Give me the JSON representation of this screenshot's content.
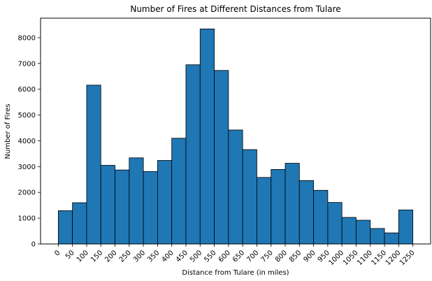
{
  "chart_data": {
    "type": "bar",
    "title": "Number of Fires at Different Distances from Tulare",
    "xlabel": "Distance from Tulare (in miles)",
    "ylabel": "Number of Fires",
    "bin_width": 50,
    "bin_starts": [
      0,
      50,
      100,
      150,
      200,
      250,
      300,
      350,
      400,
      450,
      500,
      550,
      600,
      650,
      700,
      750,
      800,
      850,
      900,
      950,
      1000,
      1050,
      1100,
      1150,
      1200
    ],
    "values": [
      1290,
      1600,
      6160,
      3050,
      2870,
      3340,
      2810,
      3240,
      4100,
      6950,
      8340,
      6730,
      4420,
      3660,
      2580,
      2890,
      3130,
      2460,
      2080,
      1610,
      1030,
      920,
      600,
      430,
      1320
    ],
    "x_ticks": [
      0,
      50,
      100,
      150,
      200,
      250,
      300,
      350,
      400,
      450,
      500,
      550,
      600,
      650,
      700,
      750,
      800,
      850,
      900,
      950,
      1000,
      1050,
      1100,
      1150,
      1200,
      1250
    ],
    "x_tick_labels": [
      "0",
      "50",
      "100",
      "150",
      "200",
      "250",
      "300",
      "350",
      "400",
      "450",
      "500",
      "550",
      "600",
      "650",
      "700",
      "750",
      "800",
      "850",
      "900",
      "950",
      "1000",
      "1050",
      "1100",
      "1150",
      "1200",
      "1250"
    ],
    "y_ticks": [
      0,
      1000,
      2000,
      3000,
      4000,
      5000,
      6000,
      7000,
      8000
    ],
    "y_tick_labels": [
      "0",
      "1000",
      "2000",
      "3000",
      "4000",
      "5000",
      "6000",
      "7000",
      "8000"
    ],
    "xlim": [
      -62.5,
      1312.5
    ],
    "ylim": [
      0,
      8757
    ],
    "grid": false,
    "bar_color": "#1f77b4",
    "edge_color": "#000000"
  }
}
